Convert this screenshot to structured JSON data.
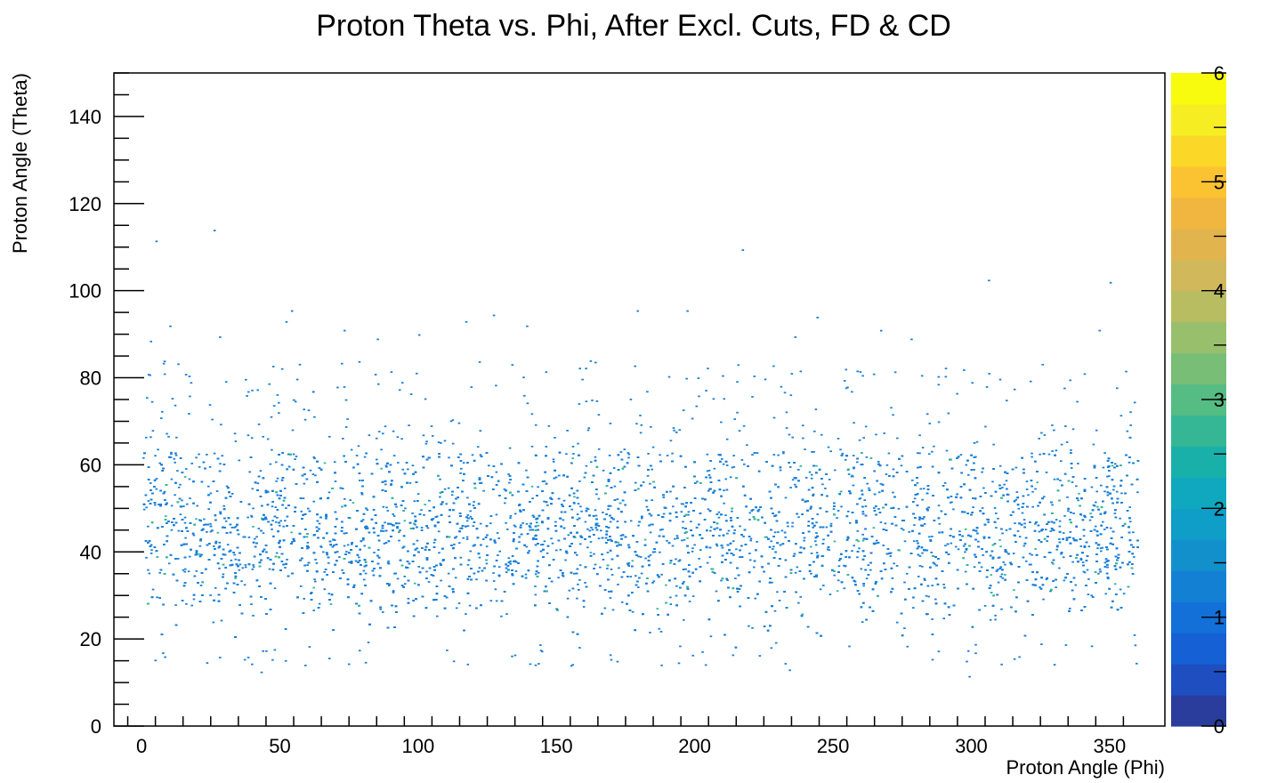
{
  "chart_data": {
    "type": "heatmap",
    "title": "Proton Theta vs. Phi, After Excl. Cuts, FD & CD",
    "xlabel": "Proton Angle (Phi)",
    "ylabel": "Proton Angle (Theta)",
    "xlim": [
      -10,
      370
    ],
    "ylim": [
      0,
      150
    ],
    "x_ticks": [
      0,
      50,
      100,
      150,
      200,
      250,
      300,
      350
    ],
    "y_ticks": [
      0,
      20,
      40,
      60,
      80,
      100,
      120,
      140
    ],
    "colorbar": {
      "min": 0,
      "max": 6,
      "ticks": [
        0,
        1,
        2,
        3,
        4,
        5,
        6
      ]
    },
    "grid": false,
    "legend": "none",
    "colors": {
      "palette": [
        "#2a3c9c",
        "#1e4ec0",
        "#1560d4",
        "#1270d8",
        "#1480d4",
        "#1290cc",
        "#0e9ec8",
        "#0fa8be",
        "#1ab0aa",
        "#35b795",
        "#55bc84",
        "#78be76",
        "#98bf6c",
        "#b8bd62",
        "#d1b85a",
        "#e2b44e",
        "#f1b640",
        "#fbc232",
        "#fbd828",
        "#f6ee22",
        "#f9fb0e"
      ],
      "point": "#1a7fd8"
    },
    "distribution": {
      "phi_range": [
        0,
        360
      ],
      "theta_core_center": 45,
      "theta_core_spread": 10,
      "theta_core_range": [
        18,
        63
      ],
      "sparse_points": [
        [
          3,
          88.5
        ],
        [
          5,
          111.5
        ],
        [
          10,
          92
        ],
        [
          8,
          81
        ],
        [
          26,
          114
        ],
        [
          28,
          89.5
        ],
        [
          54,
          95.5
        ],
        [
          52,
          93
        ],
        [
          73,
          91
        ],
        [
          85,
          89
        ],
        [
          100,
          90
        ],
        [
          117,
          93
        ],
        [
          127,
          94.5
        ],
        [
          139,
          92
        ],
        [
          162,
          84
        ],
        [
          179,
          95.5
        ],
        [
          197,
          95.5
        ],
        [
          217,
          109.5
        ],
        [
          236,
          89.5
        ],
        [
          244,
          94
        ],
        [
          267,
          91
        ],
        [
          278,
          89
        ],
        [
          300,
          79
        ],
        [
          306,
          102.5
        ],
        [
          346,
          91
        ],
        [
          350,
          102
        ],
        [
          298,
          15
        ],
        [
          299,
          11.5
        ],
        [
          43,
          12.5
        ],
        [
          155,
          14
        ],
        [
          234,
          13
        ]
      ]
    }
  }
}
